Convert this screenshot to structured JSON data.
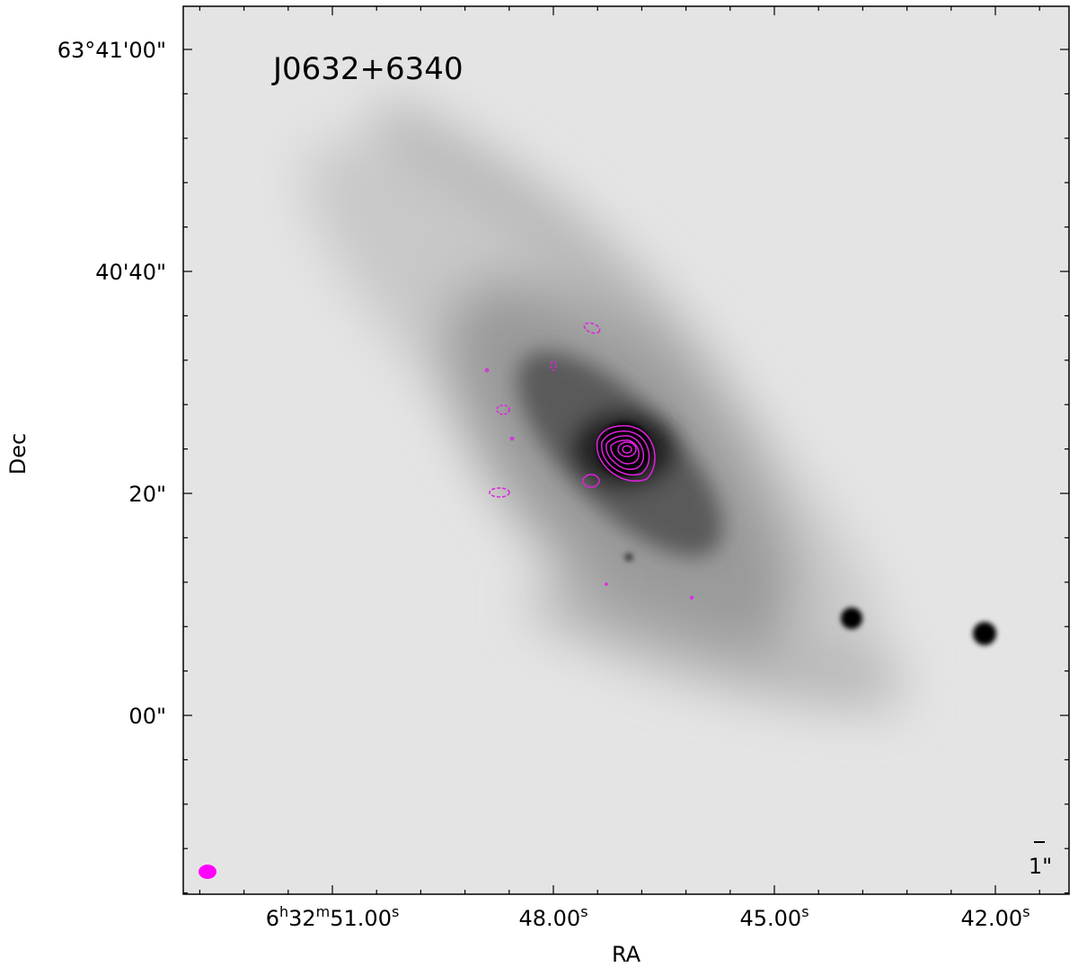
{
  "figure": {
    "title": "J0632+6340",
    "xlabel": "RA",
    "ylabel": "Dec",
    "xticks": [
      {
        "label": [
          "6",
          "h",
          "32",
          "m",
          "51.00",
          "s"
        ]
      },
      {
        "label": [
          "48.00",
          "s"
        ]
      },
      {
        "label": [
          "45.00",
          "s"
        ]
      },
      {
        "label": [
          "42.00",
          "s"
        ]
      }
    ],
    "yticks": [
      "63°41'00\"",
      "40'40\"",
      "20\"",
      "00\""
    ],
    "scale_label": "1\""
  }
}
